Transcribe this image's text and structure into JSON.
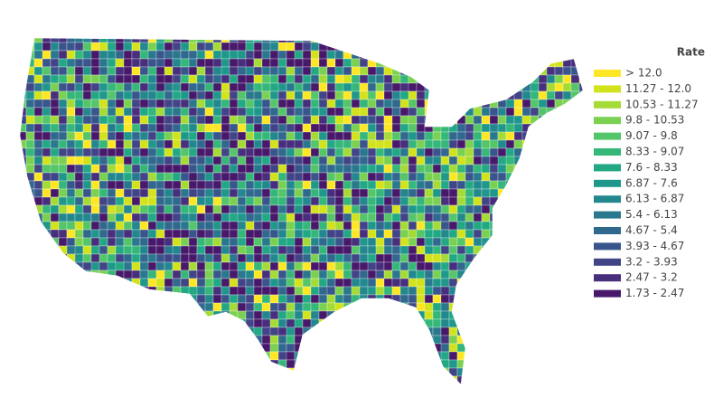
{
  "legend": {
    "title": "Rate",
    "items": [
      {
        "label": "> 12.0",
        "color": "#fde725"
      },
      {
        "label": "11.27 - 12.0",
        "color": "#d2e21b"
      },
      {
        "label": "10.53 - 11.27",
        "color": "#a5db36"
      },
      {
        "label": "9.8 - 10.53",
        "color": "#7ad151"
      },
      {
        "label": "9.07 - 9.8",
        "color": "#54c568"
      },
      {
        "label": "8.33 - 9.07",
        "color": "#35b779"
      },
      {
        "label": "7.6 - 8.33",
        "color": "#22a884"
      },
      {
        "label": "6.87 - 7.6",
        "color": "#1f988b"
      },
      {
        "label": "6.13 - 6.87",
        "color": "#23888e"
      },
      {
        "label": "5.4 - 6.13",
        "color": "#2a788e"
      },
      {
        "label": "4.67 - 5.4",
        "color": "#31688e"
      },
      {
        "label": "3.93 - 4.67",
        "color": "#39568c"
      },
      {
        "label": "3.2 - 3.93",
        "color": "#414487"
      },
      {
        "label": "2.47 - 3.2",
        "color": "#472f7d"
      },
      {
        "label": "1.73 - 2.47",
        "color": "#48186a"
      }
    ]
  }
}
